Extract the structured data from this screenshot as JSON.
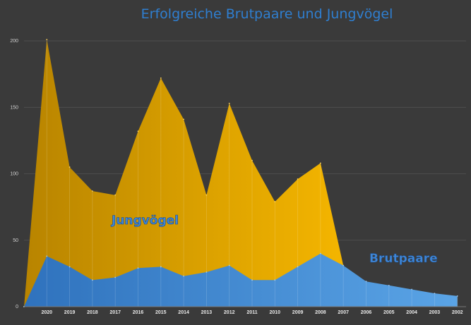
{
  "chart_data": {
    "type": "area",
    "title": "Erfolgreiche Brutpaare und Jungvögel",
    "xlabel": "",
    "ylabel": "",
    "ylim": [
      0,
      200
    ],
    "yticks": [
      "0",
      "50",
      "100",
      "150",
      "200"
    ],
    "grid": true,
    "categories": [
      "",
      "2020",
      "2019",
      "2018",
      "2017",
      "2016",
      "2015",
      "2014",
      "2013",
      "2012",
      "2011",
      "2010",
      "2009",
      "2008",
      "2007",
      "2006",
      "2005",
      "2004",
      "2003",
      "2002"
    ],
    "series": [
      {
        "name": "Jungvögel",
        "color": "#e8a800",
        "values": [
          0,
          201,
          105,
          87,
          84,
          132,
          172,
          141,
          84,
          153,
          110,
          79,
          96,
          108,
          null,
          null,
          null,
          null,
          null,
          null
        ]
      },
      {
        "name": "Brutpaare",
        "color": "#4a90d9",
        "values": [
          0,
          38,
          30,
          20,
          22,
          29,
          30,
          23,
          26,
          31,
          20,
          20,
          30,
          40,
          31,
          19,
          16,
          13,
          10,
          8
        ]
      }
    ]
  }
}
